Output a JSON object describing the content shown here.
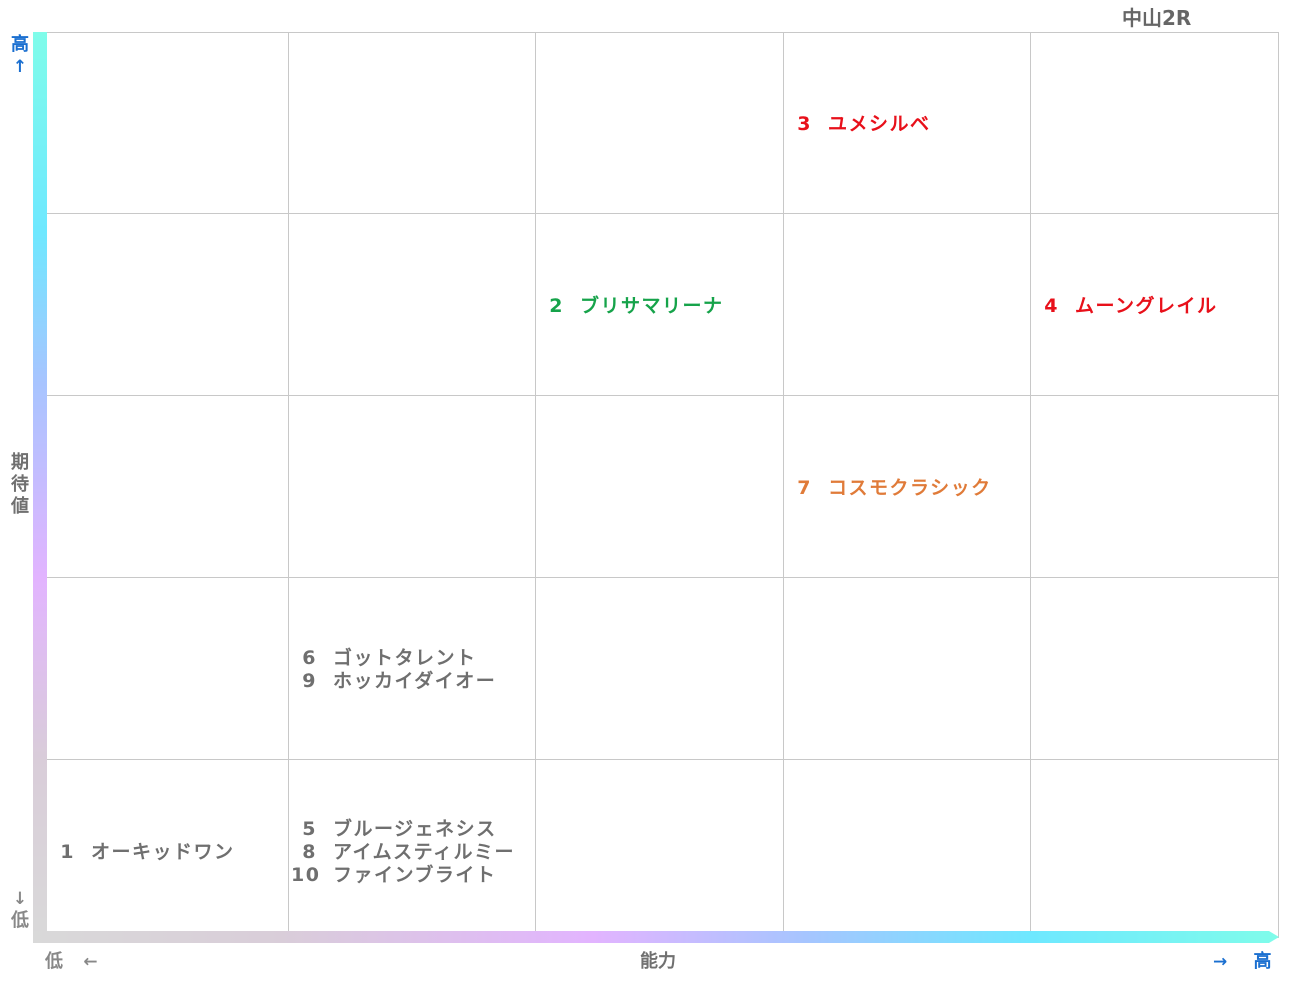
{
  "race_label": "中山2R",
  "axes": {
    "y_title": "期待値",
    "y_high_label": "高",
    "y_high_arrow": "↑",
    "y_low_arrow": "↓",
    "y_low_label": "低",
    "x_title": "能力",
    "x_low_label": "低",
    "x_low_arrow": "←",
    "x_high_arrow": "→",
    "x_high_label": "高"
  },
  "colors": {
    "red": "#e8101a",
    "green": "#16a34a",
    "orange": "#e07b39",
    "gray": "#6f6f6f"
  },
  "chart_data": {
    "type": "table",
    "x_axis": "能力",
    "y_axis": "期待値",
    "columns": 5,
    "rows": 5,
    "cells": [
      {
        "col": 4,
        "row": 5,
        "color": "red",
        "horses": [
          {
            "num": "3",
            "name": "ユメシルベ"
          }
        ]
      },
      {
        "col": 3,
        "row": 4,
        "color": "green",
        "horses": [
          {
            "num": "2",
            "name": "ブリサマリーナ"
          }
        ]
      },
      {
        "col": 5,
        "row": 4,
        "color": "red",
        "horses": [
          {
            "num": "4",
            "name": "ムーングレイル"
          }
        ]
      },
      {
        "col": 4,
        "row": 3,
        "color": "orange",
        "horses": [
          {
            "num": "7",
            "name": "コスモクラシック"
          }
        ]
      },
      {
        "col": 2,
        "row": 2,
        "color": "gray",
        "horses": [
          {
            "num": "6",
            "name": "ゴットタレント"
          },
          {
            "num": "9",
            "name": "ホッカイダイオー"
          }
        ]
      },
      {
        "col": 1,
        "row": 1,
        "color": "gray",
        "horses": [
          {
            "num": "1",
            "name": "オーキッドワン"
          }
        ]
      },
      {
        "col": 2,
        "row": 1,
        "color": "gray",
        "horses": [
          {
            "num": "5",
            "name": "ブルージェネシス"
          },
          {
            "num": "8",
            "name": "アイムスティルミー"
          },
          {
            "num": "10",
            "name": "ファインブライト"
          }
        ]
      }
    ]
  }
}
